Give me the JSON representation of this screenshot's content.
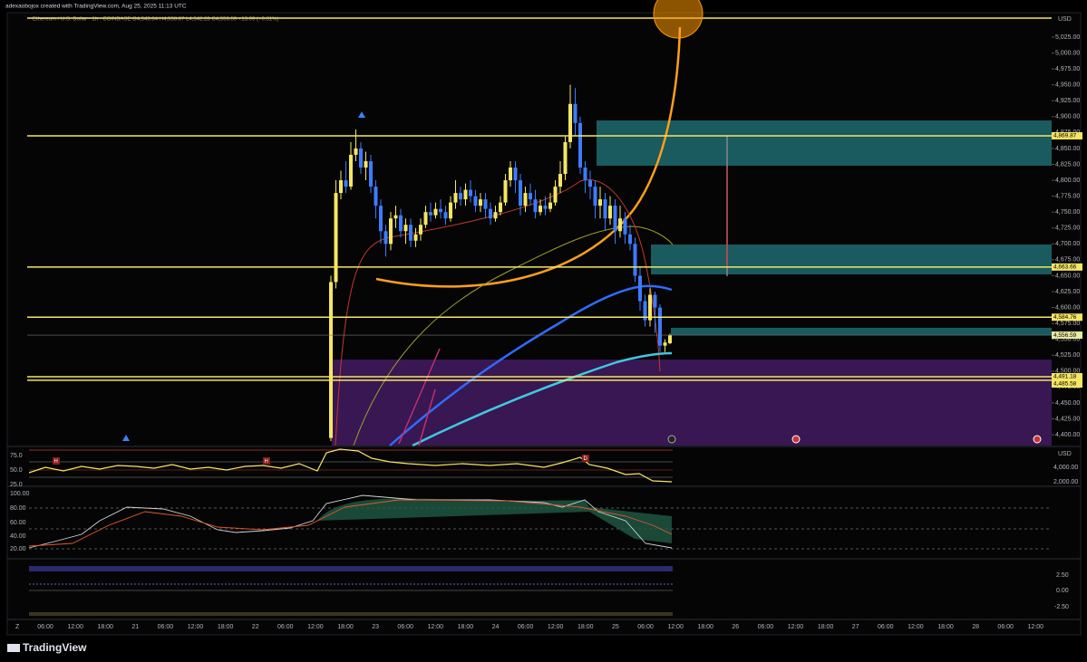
{
  "header": {
    "credit": "adexaobojox created with TradingView.com, Aug 25, 2025 11:13 UTC",
    "legend": "Ethereum / U.S. Dollar · 1h · COINBASE  O4,543.84 H4,558.87 L4,542.28 C4,556.59 +13.09 (+0.31%)"
  },
  "price_pane": {
    "currency": "USD",
    "ylim": [
      4383,
      5062
    ],
    "yticks": [
      {
        "value": 5025,
        "label": "5,025.00"
      },
      {
        "value": 5000,
        "label": "5,000.00"
      },
      {
        "value": 4975,
        "label": "4,975.00"
      },
      {
        "value": 4950,
        "label": "4,950.00"
      },
      {
        "value": 4925,
        "label": "4,925.00"
      },
      {
        "value": 4900,
        "label": "4,900.00"
      },
      {
        "value": 4875,
        "label": "4,875.00"
      },
      {
        "value": 4850,
        "label": "4,850.00"
      },
      {
        "value": 4825,
        "label": "4,825.00"
      },
      {
        "value": 4800,
        "label": "4,800.00"
      },
      {
        "value": 4775,
        "label": "4,775.00"
      },
      {
        "value": 4750,
        "label": "4,750.00"
      },
      {
        "value": 4725,
        "label": "4,725.00"
      },
      {
        "value": 4700,
        "label": "4,700.00"
      },
      {
        "value": 4675,
        "label": "4,675.00"
      },
      {
        "value": 4650,
        "label": "4,650.00"
      },
      {
        "value": 4625,
        "label": "4,625.00"
      },
      {
        "value": 4600,
        "label": "4,600.00"
      },
      {
        "value": 4575,
        "label": "4,575.00"
      },
      {
        "value": 4550,
        "label": "4,550.00"
      },
      {
        "value": 4525,
        "label": "4,525.00"
      },
      {
        "value": 4500,
        "label": "4,500.00"
      },
      {
        "value": 4475,
        "label": "4,475.00"
      },
      {
        "value": 4450,
        "label": "4,450.00"
      },
      {
        "value": 4425,
        "label": "4,425.00"
      },
      {
        "value": 4400,
        "label": "4,400.00"
      }
    ],
    "levels": [
      {
        "value": 4869.87,
        "label": "4,869.87"
      },
      {
        "value": 4663.66,
        "label": "4,663.66"
      },
      {
        "value": 4584.76,
        "label": "4,584.76"
      },
      {
        "value": 4491.18,
        "label": "4,491.18"
      },
      {
        "value": 4485.58,
        "label": "4,485.58"
      }
    ],
    "current": {
      "value": 4556.59,
      "label": "4,556.59"
    },
    "candles": [
      [
        4395,
        4650,
        4390,
        4640
      ],
      [
        4640,
        4800,
        4630,
        4780
      ],
      [
        4780,
        4815,
        4770,
        4800
      ],
      [
        4800,
        4830,
        4780,
        4790
      ],
      [
        4790,
        4860,
        4785,
        4840
      ],
      [
        4840,
        4880,
        4830,
        4850
      ],
      [
        4850,
        4860,
        4810,
        4820
      ],
      [
        4820,
        4845,
        4800,
        4830
      ],
      [
        4830,
        4840,
        4780,
        4790
      ],
      [
        4790,
        4800,
        4740,
        4760
      ],
      [
        4760,
        4770,
        4700,
        4720
      ],
      [
        4720,
        4730,
        4680,
        4700
      ],
      [
        4700,
        4750,
        4690,
        4740
      ],
      [
        4740,
        4760,
        4725,
        4745
      ],
      [
        4745,
        4755,
        4710,
        4720
      ],
      [
        4720,
        4740,
        4700,
        4730
      ],
      [
        4730,
        4740,
        4695,
        4705
      ],
      [
        4705,
        4725,
        4695,
        4715
      ],
      [
        4715,
        4740,
        4705,
        4730
      ],
      [
        4730,
        4760,
        4725,
        4750
      ],
      [
        4750,
        4765,
        4735,
        4745
      ],
      [
        4745,
        4765,
        4740,
        4755
      ],
      [
        4755,
        4770,
        4740,
        4750
      ],
      [
        4750,
        4760,
        4730,
        4740
      ],
      [
        4740,
        4775,
        4735,
        4765
      ],
      [
        4765,
        4800,
        4755,
        4780
      ],
      [
        4780,
        4790,
        4760,
        4770
      ],
      [
        4770,
        4795,
        4760,
        4785
      ],
      [
        4785,
        4800,
        4765,
        4775
      ],
      [
        4775,
        4785,
        4750,
        4760
      ],
      [
        4760,
        4780,
        4750,
        4770
      ],
      [
        4770,
        4780,
        4740,
        4755
      ],
      [
        4755,
        4765,
        4730,
        4740
      ],
      [
        4740,
        4760,
        4735,
        4750
      ],
      [
        4750,
        4775,
        4745,
        4765
      ],
      [
        4765,
        4810,
        4760,
        4800
      ],
      [
        4800,
        4830,
        4790,
        4820
      ],
      [
        4820,
        4830,
        4780,
        4800
      ],
      [
        4800,
        4810,
        4745,
        4760
      ],
      [
        4760,
        4790,
        4750,
        4780
      ],
      [
        4780,
        4795,
        4760,
        4770
      ],
      [
        4770,
        4785,
        4740,
        4750
      ],
      [
        4750,
        4770,
        4745,
        4760
      ],
      [
        4760,
        4775,
        4745,
        4755
      ],
      [
        4755,
        4780,
        4750,
        4765
      ],
      [
        4765,
        4800,
        4760,
        4790
      ],
      [
        4790,
        4830,
        4780,
        4810
      ],
      [
        4810,
        4870,
        4800,
        4860
      ],
      [
        4860,
        4950,
        4850,
        4920
      ],
      [
        4920,
        4945,
        4870,
        4890
      ],
      [
        4890,
        4900,
        4810,
        4820
      ],
      [
        4820,
        4830,
        4780,
        4800
      ],
      [
        4800,
        4815,
        4770,
        4790
      ],
      [
        4790,
        4800,
        4740,
        4760
      ],
      [
        4760,
        4790,
        4740,
        4770
      ],
      [
        4770,
        4780,
        4720,
        4740
      ],
      [
        4740,
        4775,
        4730,
        4760
      ],
      [
        4760,
        4770,
        4700,
        4720
      ],
      [
        4720,
        4760,
        4710,
        4740
      ],
      [
        4740,
        4750,
        4700,
        4715
      ],
      [
        4715,
        4730,
        4690,
        4700
      ],
      [
        4700,
        4710,
        4640,
        4650
      ],
      [
        4650,
        4665,
        4595,
        4610
      ],
      [
        4610,
        4620,
        4570,
        4580
      ],
      [
        4580,
        4630,
        4570,
        4620
      ],
      [
        4620,
        4625,
        4560,
        4600
      ],
      [
        4600,
        4605,
        4530,
        4540
      ],
      [
        4540,
        4550,
        4530,
        4545
      ],
      [
        4543.84,
        4558.87,
        4542.28,
        4556.59
      ]
    ]
  },
  "oscillator_pane": {
    "left_ticks": [
      "75.0",
      "50.0",
      "25.0"
    ],
    "currency": "USD",
    "right_ticks": [
      "4,000.00",
      "2,000.00"
    ],
    "markers": [
      "H",
      "H",
      "D"
    ]
  },
  "stoch_pane": {
    "ticks": [
      "100.00",
      "80.00",
      "60.00",
      "40.00",
      "20.00"
    ]
  },
  "momentum_pane": {
    "ticks": [
      "2.50",
      "0.00",
      "-2.50"
    ]
  },
  "time_axis": {
    "corner": "Z",
    "labels": [
      "06:00",
      "12:00",
      "18:00",
      "21",
      "06:00",
      "12:00",
      "18:00",
      "22",
      "06:00",
      "12:00",
      "18:00",
      "23",
      "06:00",
      "12:00",
      "18:00",
      "24",
      "06:00",
      "12:00",
      "18:00",
      "25",
      "06:00",
      "12:00",
      "18:00",
      "26",
      "06:00",
      "12:00",
      "18:00",
      "27",
      "06:00",
      "12:00",
      "18:00",
      "28",
      "06:00",
      "12:00"
    ]
  },
  "footer": {
    "logo": "TradingView"
  }
}
